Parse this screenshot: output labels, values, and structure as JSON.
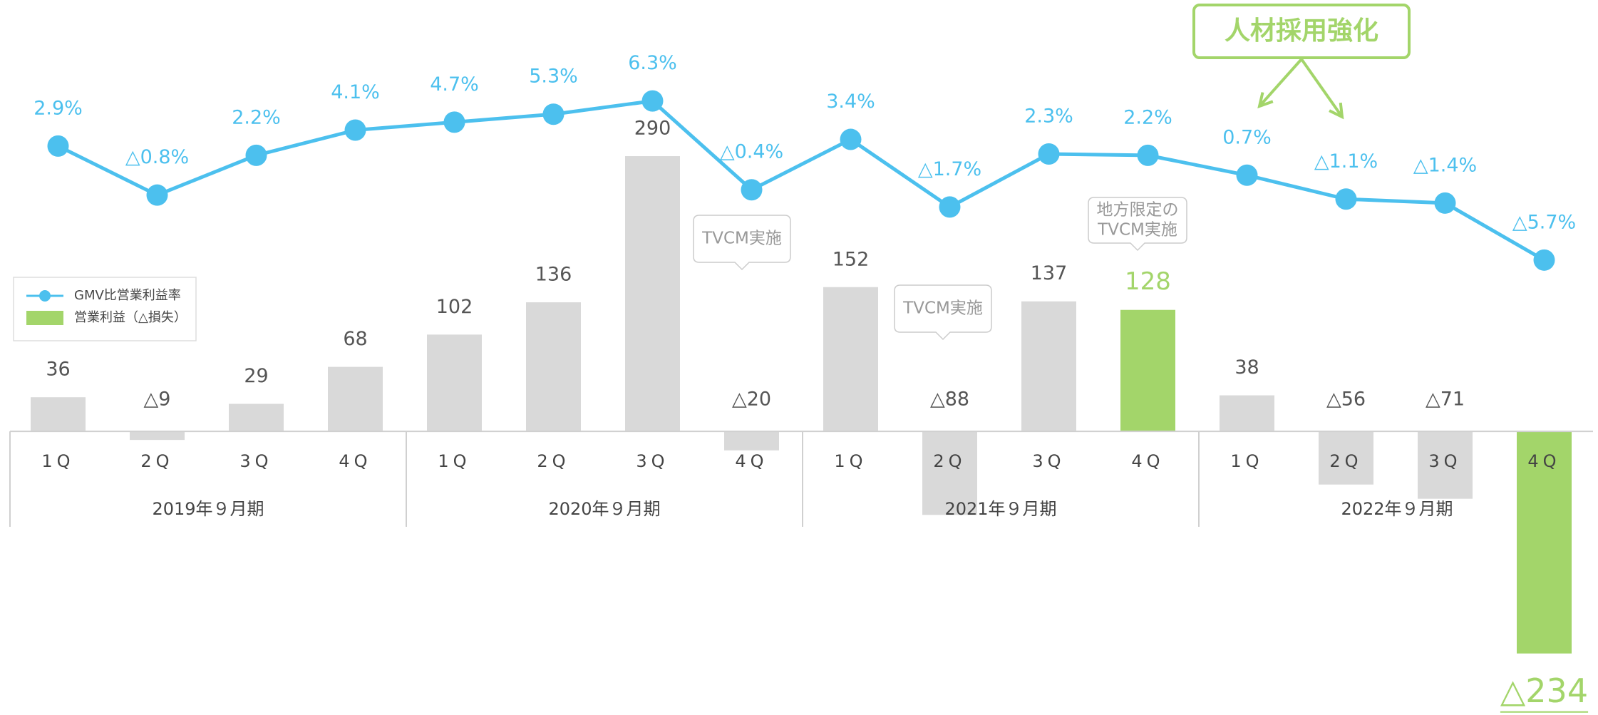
{
  "chart_data": {
    "type": "bar_line",
    "categories": [
      "1Q",
      "2Q",
      "3Q",
      "4Q",
      "1Q",
      "2Q",
      "3Q",
      "4Q",
      "1Q",
      "2Q",
      "3Q",
      "4Q",
      "1Q",
      "2Q",
      "3Q",
      "4Q"
    ],
    "groups": [
      "2019年９月期",
      "2020年９月期",
      "2021年９月期",
      "2022年９月期"
    ],
    "series": [
      {
        "name": "GMV比営業利益率",
        "type": "line",
        "axis": "y2",
        "color": "#4cc0ee",
        "values": [
          2.9,
          -0.8,
          2.2,
          4.1,
          4.7,
          5.3,
          6.3,
          -0.4,
          3.4,
          -1.7,
          2.3,
          2.2,
          0.7,
          -1.1,
          -1.4,
          -5.7
        ],
        "value_labels": [
          "2.9%",
          "△0.8%",
          "2.2%",
          "4.1%",
          "4.7%",
          "5.3%",
          "6.3%",
          "△0.4%",
          "3.4%",
          "△1.7%",
          "2.3%",
          "2.2%",
          "0.7%",
          "△1.1%",
          "△1.4%",
          "△5.7%"
        ]
      },
      {
        "name": "営業利益（△損失）",
        "type": "bar",
        "color": "#a3d56a",
        "colors": [
          "#d9d9d9",
          "#d9d9d9",
          "#d9d9d9",
          "#d9d9d9",
          "#d9d9d9",
          "#d9d9d9",
          "#d9d9d9",
          "#d9d9d9",
          "#d9d9d9",
          "#d9d9d9",
          "#d9d9d9",
          "#a3d56a",
          "#d9d9d9",
          "#d9d9d9",
          "#d9d9d9",
          "#a3d56a"
        ],
        "values": [
          36,
          -9,
          29,
          68,
          102,
          136,
          290,
          -20,
          152,
          -88,
          137,
          128,
          38,
          -56,
          -71,
          -234
        ],
        "value_labels": [
          "36",
          "△9",
          "29",
          "68",
          "102",
          "136",
          "290",
          "△20",
          "152",
          "△88",
          "137",
          "128",
          "38",
          "△56",
          "△71",
          "△234"
        ]
      }
    ],
    "ylim": [
      -250,
      450
    ],
    "y2lim": [
      -10,
      10
    ],
    "annotations": {
      "headline": "人材採用強化",
      "callouts": [
        [
          "TVCM実施"
        ],
        [
          "TVCM実施"
        ],
        [
          "地方限定の",
          "TVCM実施"
        ]
      ]
    }
  }
}
